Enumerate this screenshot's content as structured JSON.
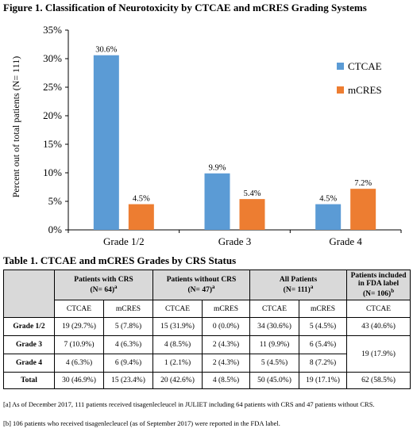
{
  "figure_title": "Figure 1. Classification of Neurotoxicity by CTCAE and mCRES Grading Systems",
  "chart_data": {
    "type": "bar",
    "categories": [
      "Grade 1/2",
      "Grade 3",
      "Grade 4"
    ],
    "series": [
      {
        "name": "CTCAE",
        "values": [
          30.6,
          9.9,
          4.5
        ],
        "labels": [
          "30.6%",
          "9.9%",
          "4.5%"
        ],
        "color": "#5b9bd5"
      },
      {
        "name": "mCRES",
        "values": [
          4.5,
          5.4,
          7.2
        ],
        "labels": [
          "4.5%",
          "5.4%",
          "7.2%"
        ],
        "color": "#ed7d31"
      }
    ],
    "ylabel": "Percent out of total patients (N= 111)",
    "ylim": [
      0,
      35
    ],
    "yticks": [
      0,
      5,
      10,
      15,
      20,
      25,
      30,
      35
    ],
    "ytick_labels": [
      "0%",
      "5%",
      "10%",
      "15%",
      "20%",
      "25%",
      "30%",
      "35%"
    ],
    "grid": false,
    "legend_position": "right"
  },
  "table_title": "Table 1. CTCAE and mCRES Grades by CRS Status",
  "table": {
    "group_headers": [
      {
        "label": "Patients with CRS",
        "n": "(N= 64)",
        "sup": "a"
      },
      {
        "label": "Patients without CRS",
        "n": "(N= 47)",
        "sup": "a"
      },
      {
        "label": "All Patients",
        "n": "(N= 111)",
        "sup": "a"
      },
      {
        "label": "Patients included in FDA label",
        "n": "(N= 106)",
        "sup": "b"
      }
    ],
    "sub_headers": [
      "CTCAE",
      "mCRES",
      "CTCAE",
      "mCRES",
      "CTCAE",
      "mCRES",
      "CTCAE"
    ],
    "rows": [
      {
        "label": "Grade 1/2",
        "cells": [
          "19 (29.7%)",
          "5 (7.8%)",
          "15 (31.9%)",
          "0 (0.0%)",
          "34 (30.6%)",
          "5 (4.5%)",
          "43 (40.6%)"
        ]
      },
      {
        "label": "Grade 3",
        "cells": [
          "7 (10.9%)",
          "4 (6.3%)",
          "4 (8.5%)",
          "2 (4.3%)",
          "11 (9.9%)",
          "6 (5.4%)"
        ]
      },
      {
        "label": "Grade 4",
        "cells": [
          "4 (6.3%)",
          "6 (9.4%)",
          "1 (2.1%)",
          "2 (4.3%)",
          "5 (4.5%)",
          "8 (7.2%)"
        ]
      },
      {
        "label": "Total",
        "cells": [
          "30 (46.9%)",
          "15 (23.4%)",
          "20 (42.6%)",
          "4 (8.5%)",
          "50 (45.0%)",
          "19 (17.1%)",
          "62 (58.5%)"
        ]
      }
    ],
    "merged_grade34_fda": "19 (17.9%)"
  },
  "footnotes": [
    "[a] As of December 2017, 111 patients received tisagenlecleucel in JULIET including 64 patients with CRS and 47 patients without CRS.",
    "[b] 106 patients who received tisagenlecleucel (as of September 2017) were reported in the FDA label."
  ]
}
